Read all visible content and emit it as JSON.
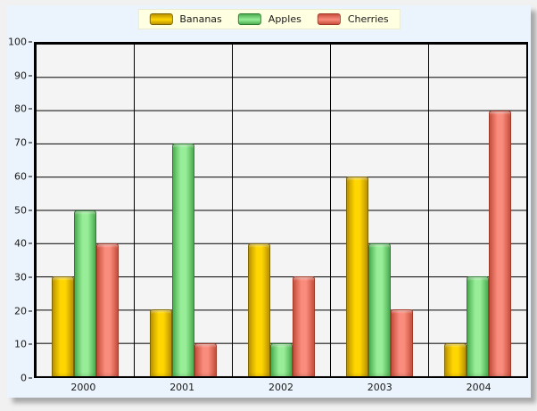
{
  "chart_data": {
    "type": "bar",
    "categories": [
      "2000",
      "2001",
      "2002",
      "2003",
      "2004"
    ],
    "series": [
      {
        "name": "Bananas",
        "values": [
          30,
          20,
          40,
          60,
          10
        ],
        "color_center": "#FFD600",
        "color_edge": "#BD9400",
        "color_border": "#7E6400"
      },
      {
        "name": "Apples",
        "values": [
          50,
          70,
          10,
          40,
          30
        ],
        "color_center": "#98EE98",
        "color_edge": "#4CAF50",
        "color_border": "#2E7D32"
      },
      {
        "name": "Cherries",
        "values": [
          40,
          10,
          30,
          20,
          80
        ],
        "color_center": "#F98C7D",
        "color_edge": "#C94F3D",
        "color_border": "#A03828"
      }
    ],
    "ylim": [
      0,
      100
    ],
    "y_ticks": [
      100,
      90,
      80,
      70,
      60,
      50,
      40,
      30,
      20,
      10,
      0
    ],
    "grid": true,
    "legend_position": "top"
  },
  "colors": {
    "page_bg": "#F1F1F1",
    "panel_bg": "#EBF4FC",
    "plot_bg": "#F4F4F4",
    "grid_line": "#000000",
    "legend_bg": "#FFFFE1",
    "axis_text": "#1A1A1A"
  }
}
